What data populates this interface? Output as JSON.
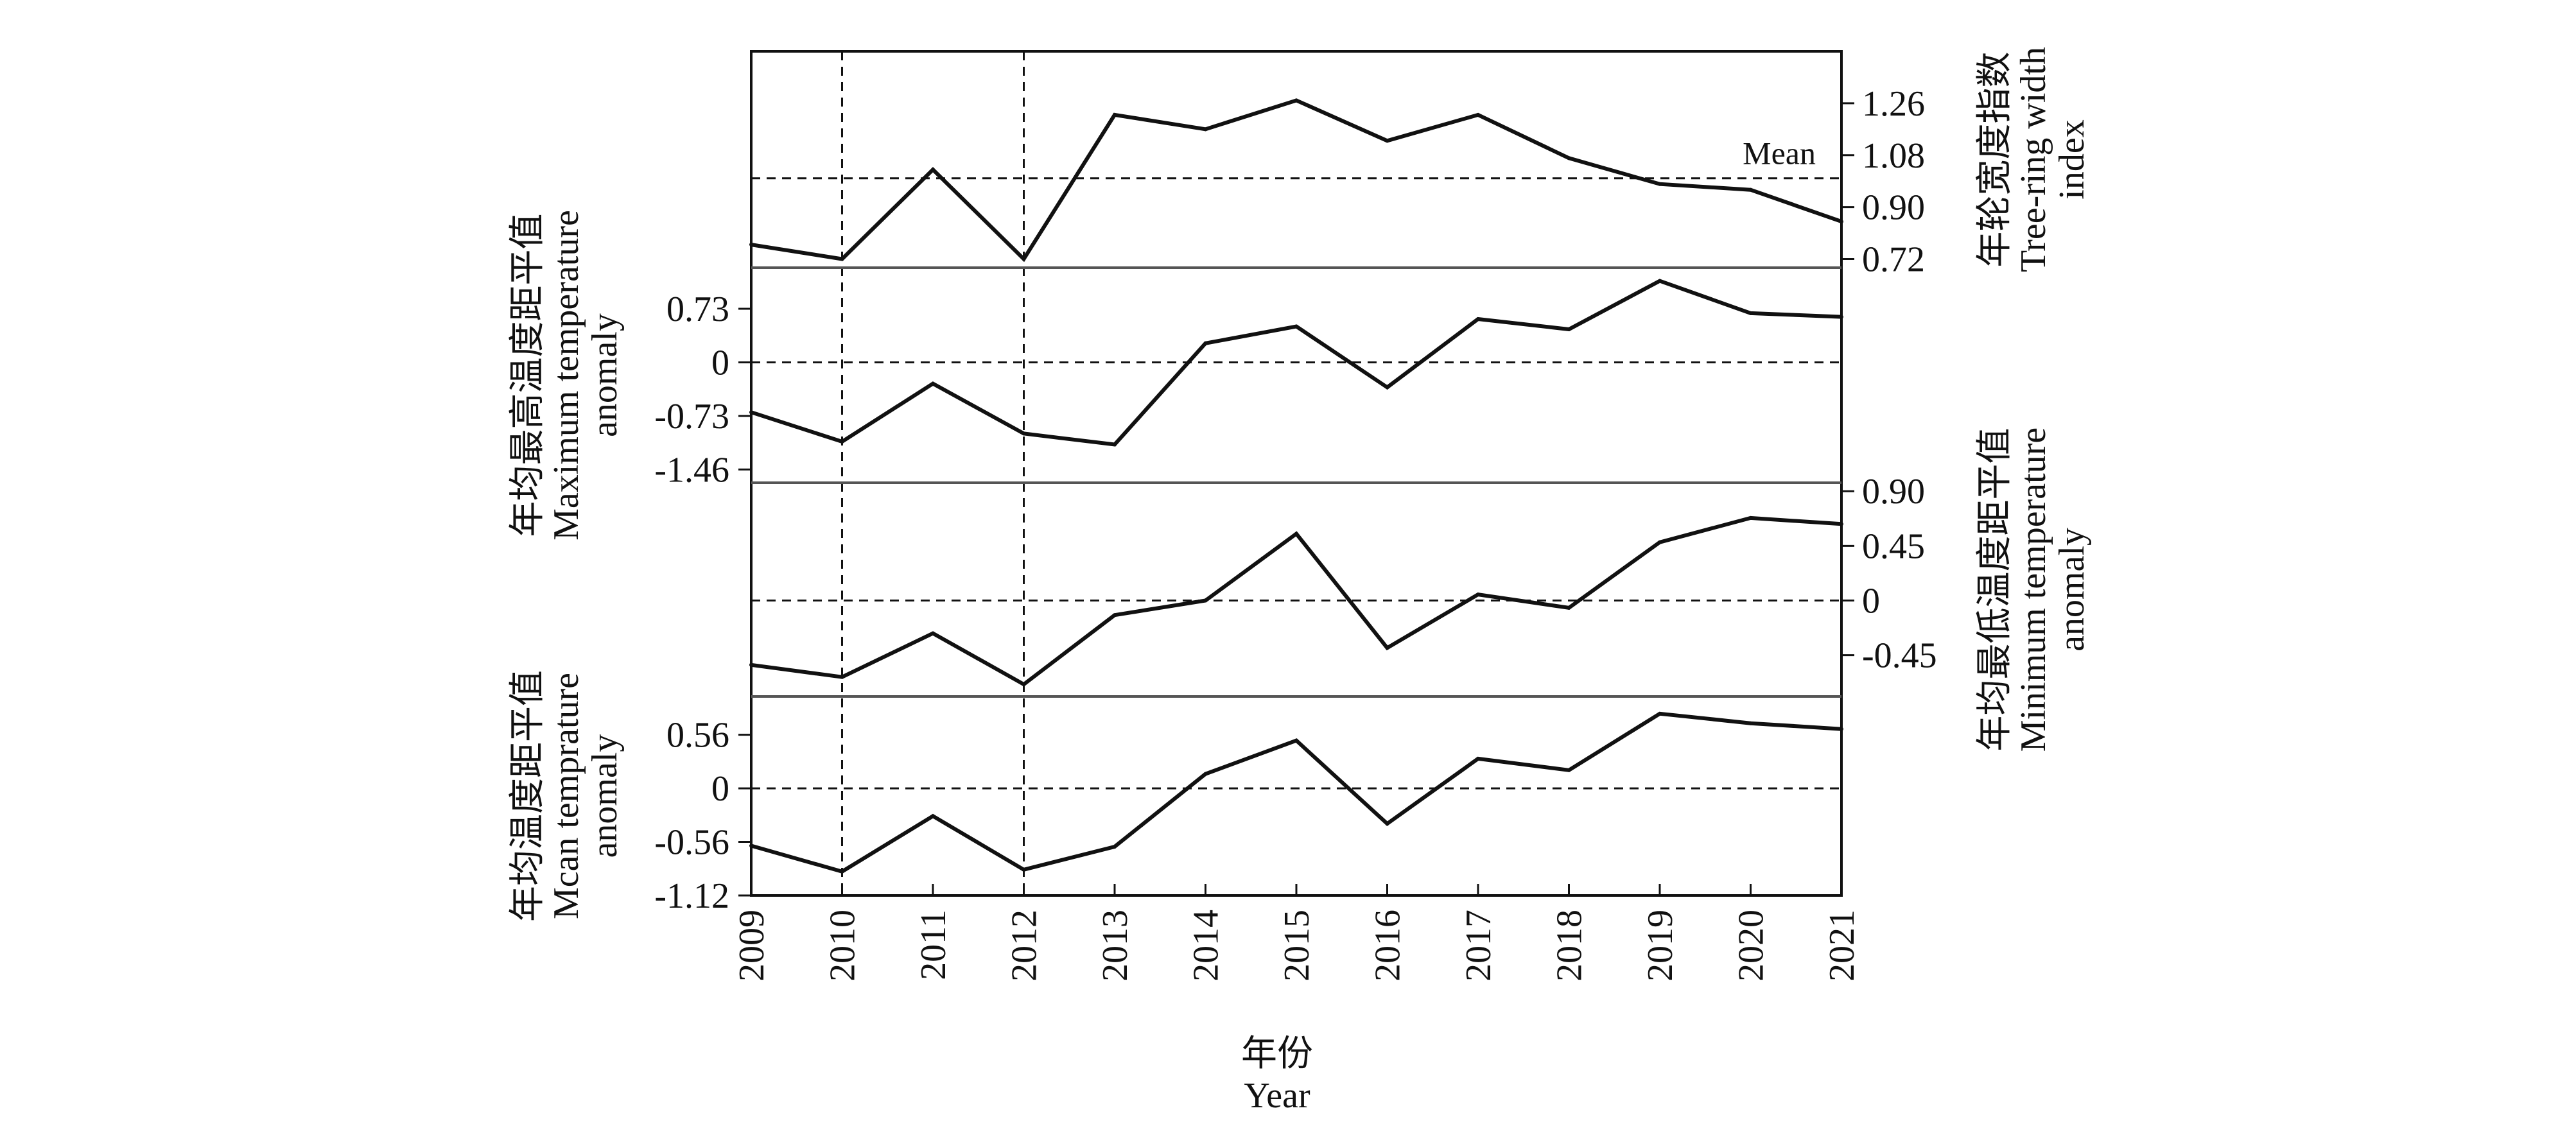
{
  "chart_data": {
    "type": "line",
    "x": [
      2009,
      2010,
      2011,
      2012,
      2013,
      2014,
      2015,
      2016,
      2017,
      2018,
      2019,
      2020,
      2021
    ],
    "xlabel": [
      "年份",
      "Year"
    ],
    "panels": [
      {
        "id": "tree-ring",
        "ylabel": [
          "年轮宽度指数",
          "Tree-ring width",
          "index"
        ],
        "y_axis_side": "right",
        "yticks": [
          "1.26",
          "1.08",
          "0.90",
          "0.72"
        ],
        "ylim": [
          0.69,
          1.44
        ],
        "reference_line": {
          "value": 1.0,
          "label": "Mean"
        },
        "values": [
          0.77,
          0.72,
          1.03,
          0.72,
          1.22,
          1.17,
          1.27,
          1.13,
          1.22,
          1.07,
          0.98,
          0.96,
          0.85
        ]
      },
      {
        "id": "max-temperature",
        "ylabel": [
          "年均最高温度距平值",
          "Maximum temperature",
          "anomaly"
        ],
        "y_axis_side": "left",
        "yticks": [
          "0.73",
          "0",
          "-0.73",
          "-1.46"
        ],
        "ylim": [
          -1.64,
          1.29
        ],
        "reference_line": {
          "value": 0,
          "label": ""
        },
        "values": [
          -0.68,
          -1.08,
          -0.29,
          -0.97,
          -1.12,
          0.26,
          0.49,
          -0.34,
          0.59,
          0.45,
          1.11,
          0.67,
          0.62
        ]
      },
      {
        "id": "min-temperature",
        "ylabel": [
          "年均最低温度距平值",
          "Minimum temperature",
          "anomaly"
        ],
        "y_axis_side": "right",
        "yticks": [
          "0.90",
          "0.45",
          "0",
          "-0.45"
        ],
        "ylim": [
          -0.79,
          0.97
        ],
        "reference_line": {
          "value": 0,
          "label": ""
        },
        "values": [
          -0.53,
          -0.63,
          -0.27,
          -0.69,
          -0.12,
          0.0,
          0.55,
          -0.39,
          0.05,
          -0.06,
          0.48,
          0.68,
          0.63
        ]
      },
      {
        "id": "mean-temperature",
        "ylabel": [
          "年均温度距平值",
          "Mcan temprature",
          "anomaly"
        ],
        "y_axis_side": "left",
        "yticks": [
          "0.56",
          "0",
          "-0.56",
          "-1.12"
        ],
        "ylim": [
          -1.12,
          0.96
        ],
        "reference_line": {
          "value": 0,
          "label": ""
        },
        "values": [
          -0.6,
          -0.87,
          -0.29,
          -0.85,
          -0.61,
          0.15,
          0.5,
          -0.37,
          0.31,
          0.19,
          0.78,
          0.68,
          0.62
        ]
      }
    ],
    "vertical_reference_years": [
      2010,
      2012
    ],
    "grid": false,
    "colors": {
      "line": "#111111",
      "axis": "#111111",
      "panel_divider": "#555555"
    }
  }
}
